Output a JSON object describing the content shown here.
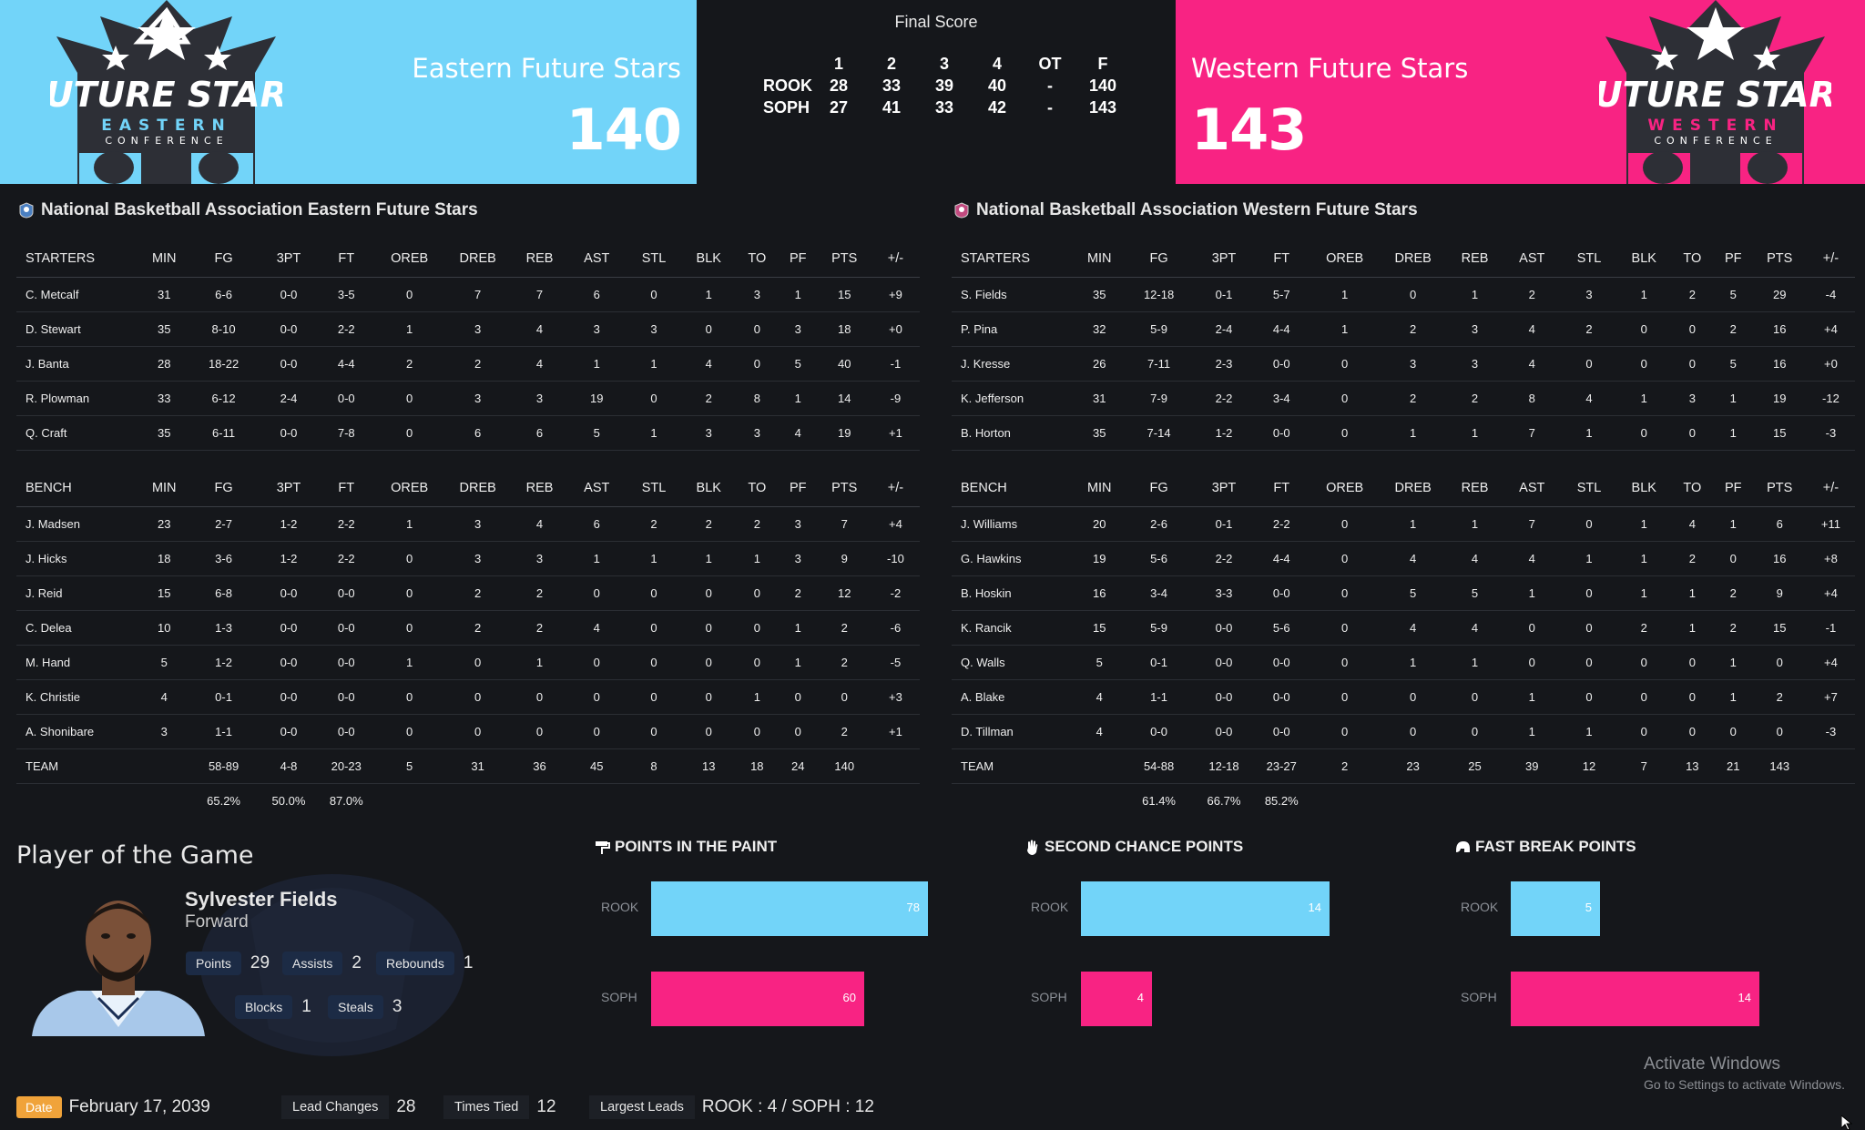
{
  "header": {
    "final_score_title": "Final Score",
    "east": {
      "name": "Eastern Future Stars",
      "score": "140",
      "color": "#72d4f9",
      "logo_text": "FUTURE STARS",
      "logo_sub": "EASTERN",
      "logo_conf": "CONFERENCE"
    },
    "west": {
      "name": "Western Future Stars",
      "score": "143",
      "color": "#f82383",
      "logo_text": "FUTURE STARS",
      "logo_sub": "WESTERN",
      "logo_conf": "CONFERENCE"
    },
    "linescore": {
      "columns": [
        "",
        "1",
        "2",
        "3",
        "4",
        "OT",
        "F"
      ],
      "rows": [
        [
          "ROOK",
          "28",
          "33",
          "39",
          "40",
          "-",
          "140"
        ],
        [
          "SOPH",
          "27",
          "41",
          "33",
          "42",
          "-",
          "143"
        ]
      ]
    }
  },
  "east_box": {
    "title": "National Basketball Association Eastern Future Stars",
    "starters_header": [
      "STARTERS",
      "MIN",
      "FG",
      "3PT",
      "FT",
      "OREB",
      "DREB",
      "REB",
      "AST",
      "STL",
      "BLK",
      "TO",
      "PF",
      "PTS",
      "+/-"
    ],
    "starters": [
      [
        "C. Metcalf",
        "31",
        "6-6",
        "0-0",
        "3-5",
        "0",
        "7",
        "7",
        "6",
        "0",
        "1",
        "3",
        "1",
        "15",
        "+9"
      ],
      [
        "D. Stewart",
        "35",
        "8-10",
        "0-0",
        "2-2",
        "1",
        "3",
        "4",
        "3",
        "3",
        "0",
        "0",
        "3",
        "18",
        "+0"
      ],
      [
        "J. Banta",
        "28",
        "18-22",
        "0-0",
        "4-4",
        "2",
        "2",
        "4",
        "1",
        "1",
        "4",
        "0",
        "5",
        "40",
        "-1"
      ],
      [
        "R. Plowman",
        "33",
        "6-12",
        "2-4",
        "0-0",
        "0",
        "3",
        "3",
        "19",
        "0",
        "2",
        "8",
        "1",
        "14",
        "-9"
      ],
      [
        "Q. Craft",
        "35",
        "6-11",
        "0-0",
        "7-8",
        "0",
        "6",
        "6",
        "5",
        "1",
        "3",
        "3",
        "4",
        "19",
        "+1"
      ]
    ],
    "bench_header": [
      "BENCH",
      "MIN",
      "FG",
      "3PT",
      "FT",
      "OREB",
      "DREB",
      "REB",
      "AST",
      "STL",
      "BLK",
      "TO",
      "PF",
      "PTS",
      "+/-"
    ],
    "bench": [
      [
        "J. Madsen",
        "23",
        "2-7",
        "1-2",
        "2-2",
        "1",
        "3",
        "4",
        "6",
        "2",
        "2",
        "2",
        "3",
        "7",
        "+4"
      ],
      [
        "J. Hicks",
        "18",
        "3-6",
        "1-2",
        "2-2",
        "0",
        "3",
        "3",
        "1",
        "1",
        "1",
        "1",
        "3",
        "9",
        "-10"
      ],
      [
        "J. Reid",
        "15",
        "6-8",
        "0-0",
        "0-0",
        "0",
        "2",
        "2",
        "0",
        "0",
        "0",
        "0",
        "2",
        "12",
        "-2"
      ],
      [
        "C. Delea",
        "10",
        "1-3",
        "0-0",
        "0-0",
        "0",
        "2",
        "2",
        "4",
        "0",
        "0",
        "0",
        "1",
        "2",
        "-6"
      ],
      [
        "M. Hand",
        "5",
        "1-2",
        "0-0",
        "0-0",
        "1",
        "0",
        "1",
        "0",
        "0",
        "0",
        "0",
        "1",
        "2",
        "-5"
      ],
      [
        "K. Christie",
        "4",
        "0-1",
        "0-0",
        "0-0",
        "0",
        "0",
        "0",
        "0",
        "0",
        "0",
        "1",
        "0",
        "0",
        "+3"
      ],
      [
        "A. Shonibare",
        "3",
        "1-1",
        "0-0",
        "0-0",
        "0",
        "0",
        "0",
        "0",
        "0",
        "0",
        "0",
        "0",
        "2",
        "+1"
      ]
    ],
    "team": [
      "TEAM",
      "",
      "58-89",
      "4-8",
      "20-23",
      "5",
      "31",
      "36",
      "45",
      "8",
      "13",
      "18",
      "24",
      "140",
      ""
    ],
    "pct": [
      "",
      "",
      "65.2%",
      "50.0%",
      "87.0%",
      "",
      "",
      "",
      "",
      "",
      "",
      "",
      "",
      "",
      ""
    ]
  },
  "west_box": {
    "title": "National Basketball Association Western Future Stars",
    "starters_header": [
      "STARTERS",
      "MIN",
      "FG",
      "3PT",
      "FT",
      "OREB",
      "DREB",
      "REB",
      "AST",
      "STL",
      "BLK",
      "TO",
      "PF",
      "PTS",
      "+/-"
    ],
    "starters": [
      [
        "S. Fields",
        "35",
        "12-18",
        "0-1",
        "5-7",
        "1",
        "0",
        "1",
        "2",
        "3",
        "1",
        "2",
        "5",
        "29",
        "-4"
      ],
      [
        "P. Pina",
        "32",
        "5-9",
        "2-4",
        "4-4",
        "1",
        "2",
        "3",
        "4",
        "2",
        "0",
        "0",
        "2",
        "16",
        "+4"
      ],
      [
        "J. Kresse",
        "26",
        "7-11",
        "2-3",
        "0-0",
        "0",
        "3",
        "3",
        "4",
        "0",
        "0",
        "0",
        "5",
        "16",
        "+0"
      ],
      [
        "K. Jefferson",
        "31",
        "7-9",
        "2-2",
        "3-4",
        "0",
        "2",
        "2",
        "8",
        "4",
        "1",
        "3",
        "1",
        "19",
        "-12"
      ],
      [
        "B. Horton",
        "35",
        "7-14",
        "1-2",
        "0-0",
        "0",
        "1",
        "1",
        "7",
        "1",
        "0",
        "0",
        "1",
        "15",
        "-3"
      ]
    ],
    "bench_header": [
      "BENCH",
      "MIN",
      "FG",
      "3PT",
      "FT",
      "OREB",
      "DREB",
      "REB",
      "AST",
      "STL",
      "BLK",
      "TO",
      "PF",
      "PTS",
      "+/-"
    ],
    "bench": [
      [
        "J. Williams",
        "20",
        "2-6",
        "0-1",
        "2-2",
        "0",
        "1",
        "1",
        "7",
        "0",
        "1",
        "4",
        "1",
        "6",
        "+11"
      ],
      [
        "G. Hawkins",
        "19",
        "5-6",
        "2-2",
        "4-4",
        "0",
        "4",
        "4",
        "4",
        "1",
        "1",
        "2",
        "0",
        "16",
        "+8"
      ],
      [
        "B. Hoskin",
        "16",
        "3-4",
        "3-3",
        "0-0",
        "0",
        "5",
        "5",
        "1",
        "0",
        "1",
        "1",
        "2",
        "9",
        "+4"
      ],
      [
        "K. Rancik",
        "15",
        "5-9",
        "0-0",
        "5-6",
        "0",
        "4",
        "4",
        "0",
        "0",
        "2",
        "1",
        "2",
        "15",
        "-1"
      ],
      [
        "Q. Walls",
        "5",
        "0-1",
        "0-0",
        "0-0",
        "0",
        "1",
        "1",
        "0",
        "0",
        "0",
        "0",
        "1",
        "0",
        "+4"
      ],
      [
        "A. Blake",
        "4",
        "1-1",
        "0-0",
        "0-0",
        "0",
        "0",
        "0",
        "1",
        "0",
        "0",
        "0",
        "1",
        "2",
        "+7"
      ],
      [
        "D. Tillman",
        "4",
        "0-0",
        "0-0",
        "0-0",
        "0",
        "0",
        "0",
        "1",
        "1",
        "0",
        "0",
        "0",
        "0",
        "-3"
      ]
    ],
    "team": [
      "TEAM",
      "",
      "54-88",
      "12-18",
      "23-27",
      "2",
      "23",
      "25",
      "39",
      "12",
      "7",
      "13",
      "21",
      "143",
      ""
    ],
    "pct": [
      "",
      "",
      "61.4%",
      "66.7%",
      "85.2%",
      "",
      "",
      "",
      "",
      "",
      "",
      "",
      "",
      "",
      ""
    ]
  },
  "potg": {
    "title": "Player of the Game",
    "name": "Sylvester Fields",
    "position": "Forward",
    "stats": [
      {
        "label": "Points",
        "value": "29"
      },
      {
        "label": "Assists",
        "value": "2"
      },
      {
        "label": "Rebounds",
        "value": "1"
      },
      {
        "label": "Blocks",
        "value": "1"
      },
      {
        "label": "Steals",
        "value": "3"
      }
    ]
  },
  "chart_data": [
    {
      "type": "bar",
      "title": "POINTS IN THE PAINT",
      "icon": "paint-roller-icon",
      "categories": [
        "ROOK",
        "SOPH"
      ],
      "values": [
        78,
        60
      ],
      "colors": [
        "#72d4f9",
        "#f82383"
      ]
    },
    {
      "type": "bar",
      "title": "SECOND CHANCE POINTS",
      "icon": "hand-icon",
      "categories": [
        "ROOK",
        "SOPH"
      ],
      "values": [
        14,
        4
      ],
      "colors": [
        "#72d4f9",
        "#f82383"
      ]
    },
    {
      "type": "bar",
      "title": "FAST BREAK POINTS",
      "icon": "helmet-icon",
      "categories": [
        "ROOK",
        "SOPH"
      ],
      "values": [
        5,
        14
      ],
      "colors": [
        "#72d4f9",
        "#f82383"
      ]
    }
  ],
  "footer": {
    "date_label": "Date",
    "date_value": "February 17, 2039",
    "lead_changes_label": "Lead Changes",
    "lead_changes_value": "28",
    "times_tied_label": "Times Tied",
    "times_tied_value": "12",
    "largest_leads_label": "Largest Leads",
    "largest_leads_value": "ROOK : 4 / SOPH : 12"
  },
  "watermark": {
    "line1": "Activate Windows",
    "line2": "Go to Settings to activate Windows."
  }
}
